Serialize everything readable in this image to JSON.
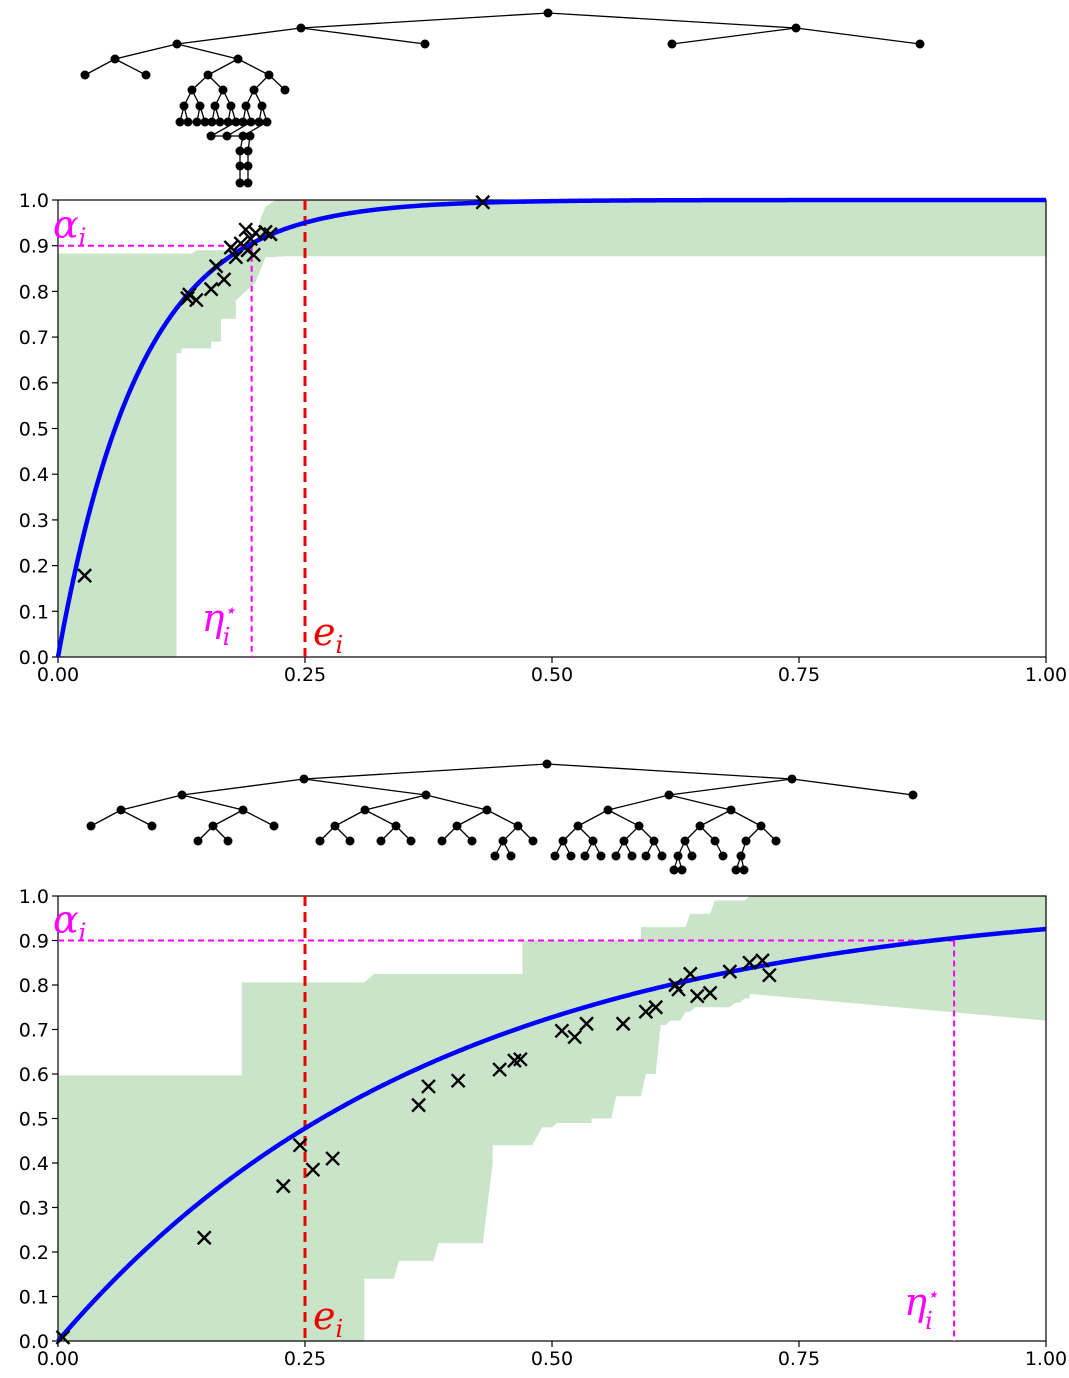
{
  "colors": {
    "curve": "#0000ff",
    "band": "#c9e4c9",
    "points": "#000000",
    "alpha_eta": "#ff00ff",
    "e_line": "#ee0000",
    "tree": "#000000"
  },
  "chart_data": [
    {
      "type": "line",
      "xlim": [
        0,
        1
      ],
      "ylim": [
        0,
        1
      ],
      "x_ticks": [
        "0.00",
        "0.25",
        "0.50",
        "0.75",
        "1.00"
      ],
      "x_tick_values": [
        0,
        0.25,
        0.5,
        0.75,
        1.0
      ],
      "y_ticks": [
        "0.0",
        "0.1",
        "0.2",
        "0.3",
        "0.4",
        "0.5",
        "0.6",
        "0.7",
        "0.8",
        "0.9",
        "1.0"
      ],
      "y_tick_values": [
        0,
        0.1,
        0.2,
        0.3,
        0.4,
        0.5,
        0.6,
        0.7,
        0.8,
        0.9,
        1.0
      ],
      "curve_rate": 12.0,
      "series": [
        {
          "type": "scatter",
          "marker": "x",
          "points": [
            [
              0.027,
              0.178
            ],
            [
              0.131,
              0.785
            ],
            [
              0.133,
              0.793
            ],
            [
              0.14,
              0.781
            ],
            [
              0.155,
              0.805
            ],
            [
              0.16,
              0.855
            ],
            [
              0.168,
              0.826
            ],
            [
              0.175,
              0.896
            ],
            [
              0.18,
              0.875
            ],
            [
              0.185,
              0.905
            ],
            [
              0.19,
              0.935
            ],
            [
              0.192,
              0.89
            ],
            [
              0.195,
              0.915
            ],
            [
              0.2,
              0.928
            ],
            [
              0.198,
              0.88
            ],
            [
              0.21,
              0.93
            ],
            [
              0.215,
              0.925
            ],
            [
              0.43,
              0.995
            ]
          ]
        }
      ],
      "band": {
        "upper": [
          [
            0,
            0.883
          ],
          [
            0.135,
            0.883
          ],
          [
            0.14,
            0.89
          ],
          [
            0.17,
            0.89
          ],
          [
            0.175,
            0.9
          ],
          [
            0.2,
            0.9
          ],
          [
            0.205,
            0.96
          ],
          [
            0.21,
            0.985
          ],
          [
            0.22,
            1.0
          ],
          [
            1.0,
            1.0
          ]
        ],
        "lower": [
          [
            0,
            0
          ],
          [
            0.12,
            0
          ],
          [
            0.12,
            0.665
          ],
          [
            0.125,
            0.665
          ],
          [
            0.125,
            0.675
          ],
          [
            0.155,
            0.675
          ],
          [
            0.155,
            0.69
          ],
          [
            0.165,
            0.69
          ],
          [
            0.165,
            0.74
          ],
          [
            0.18,
            0.74
          ],
          [
            0.18,
            0.78
          ],
          [
            0.2,
            0.82
          ],
          [
            0.21,
            0.875
          ],
          [
            0.215,
            0.875
          ],
          [
            0.23,
            0.877
          ],
          [
            1.0,
            0.877
          ]
        ]
      },
      "alpha": {
        "label": "α",
        "sub": "i",
        "value": 0.9
      },
      "eta_star": {
        "label": "η",
        "sub": "i",
        "sup": "⋆",
        "value": 0.196
      },
      "e": {
        "label": "e",
        "sub": "i",
        "value": 0.25
      }
    },
    {
      "type": "line",
      "xlim": [
        0,
        1
      ],
      "ylim": [
        0,
        1
      ],
      "x_ticks": [
        "0.00",
        "0.25",
        "0.50",
        "0.75",
        "1.00"
      ],
      "x_tick_values": [
        0,
        0.25,
        0.5,
        0.75,
        1.0
      ],
      "y_ticks": [
        "0.0",
        "0.1",
        "0.2",
        "0.3",
        "0.4",
        "0.5",
        "0.6",
        "0.7",
        "0.8",
        "0.9",
        "1.0"
      ],
      "y_tick_values": [
        0,
        0.1,
        0.2,
        0.3,
        0.4,
        0.5,
        0.6,
        0.7,
        0.8,
        0.9,
        1.0
      ],
      "curve_rate": 2.6,
      "series": [
        {
          "type": "scatter",
          "marker": "x",
          "points": [
            [
              0.005,
              0.008
            ],
            [
              0.148,
              0.232
            ],
            [
              0.228,
              0.348
            ],
            [
              0.245,
              0.44
            ],
            [
              0.258,
              0.385
            ],
            [
              0.278,
              0.41
            ],
            [
              0.365,
              0.53
            ],
            [
              0.375,
              0.572
            ],
            [
              0.405,
              0.585
            ],
            [
              0.447,
              0.61
            ],
            [
              0.462,
              0.63
            ],
            [
              0.468,
              0.633
            ],
            [
              0.51,
              0.697
            ],
            [
              0.523,
              0.683
            ],
            [
              0.535,
              0.713
            ],
            [
              0.572,
              0.713
            ],
            [
              0.595,
              0.74
            ],
            [
              0.605,
              0.75
            ],
            [
              0.625,
              0.8
            ],
            [
              0.628,
              0.79
            ],
            [
              0.64,
              0.825
            ],
            [
              0.647,
              0.775
            ],
            [
              0.66,
              0.782
            ],
            [
              0.68,
              0.83
            ],
            [
              0.7,
              0.85
            ],
            [
              0.713,
              0.855
            ],
            [
              0.72,
              0.822
            ]
          ]
        }
      ],
      "band": {
        "upper": [
          [
            0,
            0.597
          ],
          [
            0.186,
            0.597
          ],
          [
            0.186,
            0.806
          ],
          [
            0.31,
            0.806
          ],
          [
            0.32,
            0.825
          ],
          [
            0.47,
            0.825
          ],
          [
            0.47,
            0.87
          ],
          [
            0.47,
            0.87
          ],
          [
            0.47,
            0.87
          ],
          [
            0.47,
            0.9
          ],
          [
            0.59,
            0.9
          ],
          [
            0.59,
            0.93
          ],
          [
            0.635,
            0.93
          ],
          [
            0.64,
            0.96
          ],
          [
            0.66,
            0.96
          ],
          [
            0.665,
            0.99
          ],
          [
            0.695,
            0.99
          ],
          [
            0.7,
            1.0
          ],
          [
            1.0,
            1.0
          ]
        ],
        "lower": [
          [
            0,
            0
          ],
          [
            0.31,
            0
          ],
          [
            0.31,
            0.14
          ],
          [
            0.34,
            0.14
          ],
          [
            0.345,
            0.18
          ],
          [
            0.38,
            0.18
          ],
          [
            0.385,
            0.22
          ],
          [
            0.43,
            0.22
          ],
          [
            0.44,
            0.4
          ],
          [
            0.44,
            0.44
          ],
          [
            0.48,
            0.44
          ],
          [
            0.49,
            0.48
          ],
          [
            0.5,
            0.48
          ],
          [
            0.505,
            0.49
          ],
          [
            0.54,
            0.49
          ],
          [
            0.54,
            0.5
          ],
          [
            0.56,
            0.5
          ],
          [
            0.565,
            0.55
          ],
          [
            0.59,
            0.55
          ],
          [
            0.595,
            0.6
          ],
          [
            0.605,
            0.6
          ],
          [
            0.61,
            0.71
          ],
          [
            0.615,
            0.71
          ],
          [
            0.62,
            0.72
          ],
          [
            0.63,
            0.72
          ],
          [
            0.635,
            0.74
          ],
          [
            0.64,
            0.74
          ],
          [
            0.645,
            0.75
          ],
          [
            0.68,
            0.75
          ],
          [
            0.685,
            0.76
          ],
          [
            0.69,
            0.76
          ],
          [
            0.695,
            0.77
          ],
          [
            0.7,
            0.77
          ],
          [
            0.7,
            0.78
          ],
          [
            1.0,
            0.72
          ]
        ]
      },
      "alpha": {
        "label": "α",
        "sub": "i",
        "value": 0.9
      },
      "eta_star": {
        "label": "η",
        "sub": "i",
        "sup": "⋆",
        "value": 0.907
      },
      "e": {
        "label": "e",
        "sub": "i",
        "value": 0.25
      }
    }
  ]
}
